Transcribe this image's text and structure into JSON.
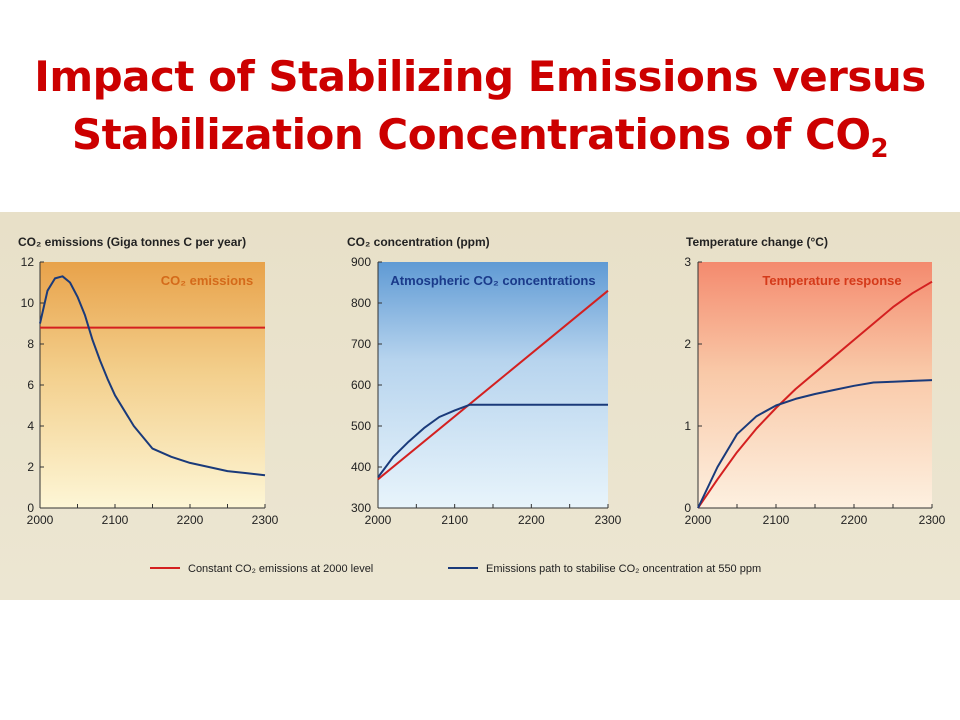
{
  "title_line1": "Impact of Stabilizing Emissions versus",
  "title_line2_main": "Stabilization Concentrations of CO",
  "title_line2_sub": "2",
  "colors": {
    "title": "#cc0000",
    "red_series": "#d42020",
    "blue_series": "#1a3a7a"
  },
  "legend": {
    "red_label": "Constant CO₂ emissions at 2000 level",
    "blue_label": "Emissions path to stabilise CO₂ oncentration at 550 ppm"
  },
  "chart_data": [
    {
      "type": "line",
      "title": "CO₂ emissions (Giga tonnes C per year)",
      "panel_label": "CO₂ emissions",
      "xlim": [
        2000,
        2300
      ],
      "ylim": [
        0,
        12
      ],
      "x_ticks": [
        "2000",
        "2100",
        "2200",
        "2300"
      ],
      "y_ticks": [
        "0",
        "2",
        "4",
        "6",
        "8",
        "10",
        "12"
      ],
      "series": [
        {
          "color": "red",
          "x": [
            2000,
            2300
          ],
          "y": [
            8.8,
            8.8
          ]
        },
        {
          "color": "blue",
          "x": [
            2000,
            2010,
            2020,
            2030,
            2040,
            2050,
            2060,
            2070,
            2080,
            2090,
            2100,
            2125,
            2150,
            2175,
            2200,
            2225,
            2250,
            2275,
            2300
          ],
          "y": [
            9.0,
            10.6,
            11.2,
            11.3,
            11.0,
            10.3,
            9.4,
            8.2,
            7.2,
            6.3,
            5.5,
            4.0,
            2.9,
            2.5,
            2.2,
            2.0,
            1.8,
            1.7,
            1.6
          ]
        }
      ]
    },
    {
      "type": "line",
      "title": "CO₂ concentration (ppm)",
      "panel_label": "Atmospheric CO₂ concentrations",
      "xlim": [
        2000,
        2300
      ],
      "ylim": [
        300,
        900
      ],
      "x_ticks": [
        "2000",
        "2100",
        "2200",
        "2300"
      ],
      "y_ticks": [
        "300",
        "400",
        "500",
        "600",
        "700",
        "800",
        "900"
      ],
      "series": [
        {
          "color": "red",
          "x": [
            2000,
            2300
          ],
          "y": [
            370,
            830
          ]
        },
        {
          "color": "blue",
          "x": [
            2000,
            2020,
            2040,
            2060,
            2080,
            2100,
            2120,
            2150,
            2200,
            2250,
            2300
          ],
          "y": [
            375,
            425,
            462,
            495,
            522,
            538,
            552,
            552,
            552,
            552,
            552
          ]
        }
      ]
    },
    {
      "type": "line",
      "title": "Temperature change (°C)",
      "panel_label": "Temperature response",
      "xlim": [
        2000,
        2300
      ],
      "ylim": [
        0,
        3
      ],
      "x_ticks": [
        "2000",
        "2100",
        "2200",
        "2300"
      ],
      "y_ticks": [
        "0",
        "1",
        "2",
        "3"
      ],
      "series": [
        {
          "color": "red",
          "x": [
            2000,
            2025,
            2050,
            2075,
            2100,
            2125,
            2150,
            2175,
            2200,
            2225,
            2250,
            2275,
            2300
          ],
          "y": [
            0.0,
            0.35,
            0.68,
            0.97,
            1.22,
            1.45,
            1.65,
            1.85,
            2.05,
            2.25,
            2.45,
            2.62,
            2.76
          ]
        },
        {
          "color": "blue",
          "x": [
            2000,
            2025,
            2050,
            2075,
            2100,
            2125,
            2150,
            2175,
            2200,
            2225,
            2250,
            2275,
            2300
          ],
          "y": [
            0.0,
            0.5,
            0.9,
            1.12,
            1.25,
            1.33,
            1.39,
            1.44,
            1.49,
            1.53,
            1.54,
            1.55,
            1.56
          ]
        }
      ]
    }
  ]
}
